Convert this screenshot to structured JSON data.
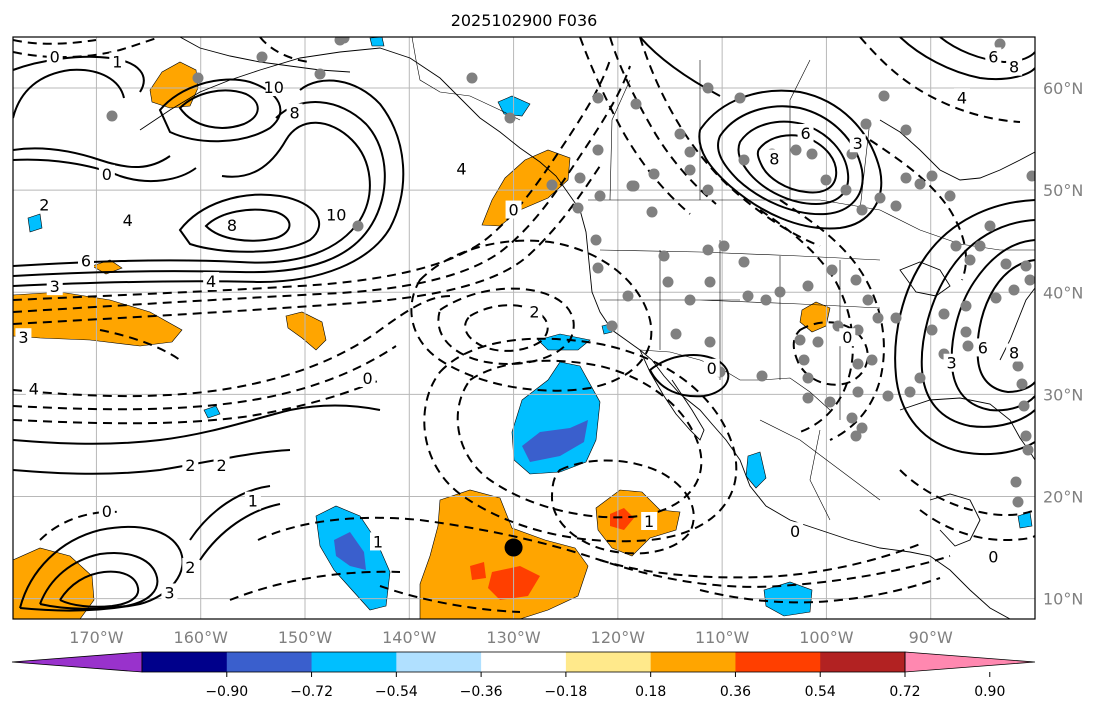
{
  "title": "2025102900 F036",
  "map": {
    "extent_lon": [
      -178,
      -80
    ],
    "extent_lat": [
      8,
      65
    ],
    "lat_labels": [
      {
        "lat": 60,
        "text": "60°N"
      },
      {
        "lat": 50,
        "text": "50°N"
      },
      {
        "lat": 40,
        "text": "40°N"
      },
      {
        "lat": 30,
        "text": "30°N"
      },
      {
        "lat": 20,
        "text": "20°N"
      },
      {
        "lat": 10,
        "text": "10°N"
      }
    ],
    "lon_labels": [
      {
        "lon": -170,
        "text": "170°W"
      },
      {
        "lon": -160,
        "text": "160°W"
      },
      {
        "lon": -150,
        "text": "150°W"
      },
      {
        "lon": -140,
        "text": "140°W"
      },
      {
        "lon": -130,
        "text": "130°W"
      },
      {
        "lon": -120,
        "text": "120°W"
      },
      {
        "lon": -110,
        "text": "110°W"
      },
      {
        "lon": -100,
        "text": "100°W"
      },
      {
        "lon": -90,
        "text": "90°W"
      }
    ],
    "contour_labels": [
      {
        "lon": -174,
        "lat": 63,
        "text": "0"
      },
      {
        "lon": -168,
        "lat": 62.5,
        "text": "1"
      },
      {
        "lon": -153,
        "lat": 60,
        "text": "10"
      },
      {
        "lon": -151,
        "lat": 57.5,
        "text": "8"
      },
      {
        "lon": -169,
        "lat": 51.5,
        "text": "0"
      },
      {
        "lon": -175,
        "lat": 48.5,
        "text": "2"
      },
      {
        "lon": -167,
        "lat": 47,
        "text": "4"
      },
      {
        "lon": -157,
        "lat": 46.5,
        "text": "8"
      },
      {
        "lon": -147,
        "lat": 47.5,
        "text": "10"
      },
      {
        "lon": -171,
        "lat": 43,
        "text": "6"
      },
      {
        "lon": -174,
        "lat": 40.5,
        "text": "3"
      },
      {
        "lon": -159,
        "lat": 41,
        "text": "4"
      },
      {
        "lon": -177,
        "lat": 35.5,
        "text": "3"
      },
      {
        "lon": -176,
        "lat": 30.5,
        "text": "4"
      },
      {
        "lon": -144,
        "lat": 31.5,
        "text": "0"
      },
      {
        "lon": -161,
        "lat": 23,
        "text": "2"
      },
      {
        "lon": -158,
        "lat": 23,
        "text": "2"
      },
      {
        "lon": -169,
        "lat": 18.5,
        "text": "0"
      },
      {
        "lon": -155,
        "lat": 19.5,
        "text": "1"
      },
      {
        "lon": -143,
        "lat": 15.5,
        "text": "1"
      },
      {
        "lon": -161,
        "lat": 13,
        "text": "2"
      },
      {
        "lon": -163,
        "lat": 10.5,
        "text": "3"
      },
      {
        "lon": -128,
        "lat": 38,
        "text": "2"
      },
      {
        "lon": -130,
        "lat": 48,
        "text": "0"
      },
      {
        "lon": -135,
        "lat": 52,
        "text": "4"
      },
      {
        "lon": -111,
        "lat": 32.5,
        "text": "0"
      },
      {
        "lon": -98,
        "lat": 35.5,
        "text": "0"
      },
      {
        "lon": -105,
        "lat": 53,
        "text": "8"
      },
      {
        "lon": -102,
        "lat": 55.5,
        "text": "6"
      },
      {
        "lon": -97,
        "lat": 54.5,
        "text": "3"
      },
      {
        "lon": -88,
        "lat": 33,
        "text": "3"
      },
      {
        "lon": -85,
        "lat": 34.5,
        "text": "6"
      },
      {
        "lon": -82,
        "lat": 34,
        "text": "8"
      },
      {
        "lon": -84,
        "lat": 63,
        "text": "6"
      },
      {
        "lon": -82,
        "lat": 62,
        "text": "8"
      },
      {
        "lon": -87,
        "lat": 59,
        "text": "4"
      },
      {
        "lon": -117,
        "lat": 17.5,
        "text": "1"
      },
      {
        "lon": -103,
        "lat": 16.5,
        "text": "0"
      },
      {
        "lon": -84,
        "lat": 14,
        "text": "0"
      }
    ],
    "marker": {
      "lon": -130,
      "lat": 15
    }
  },
  "colorbar": {
    "colors": [
      "#9932cc",
      "#00008b",
      "#3a5fcd",
      "#00bfff",
      "#b0e0ff",
      "#ffffff",
      "#ffe98b",
      "#ffa500",
      "#ff3f00",
      "#b22222",
      "#ff88b0"
    ],
    "tick_labels": [
      "−0.90",
      "−0.72",
      "−0.54",
      "−0.36",
      "−0.18",
      "0.18",
      "0.36",
      "0.54",
      "0.72",
      "0.90"
    ]
  }
}
